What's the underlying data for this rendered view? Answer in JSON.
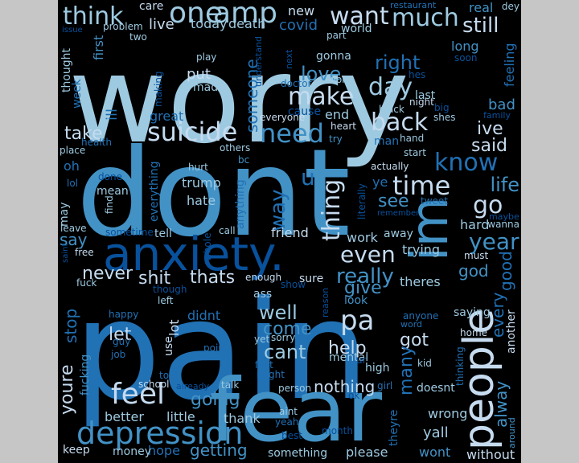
{
  "background": "#000000",
  "page_background": "#c6c6c6",
  "palette": [
    "#c6dbef",
    "#9ecae1",
    "#6baed6",
    "#4292c6",
    "#2171b5",
    "#08519c",
    "#08306b",
    "#deebf7"
  ],
  "words": [
    {
      "text": "worry",
      "color": "#9ecae1"
    },
    {
      "text": "dont",
      "color": "#4292c6"
    },
    {
      "text": "pain",
      "color": "#2171b5"
    },
    {
      "text": "fear",
      "color": "#4292c6"
    },
    {
      "text": "anxiety.",
      "color": "#08519c"
    },
    {
      "text": "people",
      "color": "#c6dbef"
    },
    {
      "text": "depression",
      "color": "#4292c6"
    },
    {
      "text": "im",
      "color": "#4292c6"
    },
    {
      "text": "one",
      "color": "#9ecae1"
    },
    {
      "text": "amp",
      "color": "#9ecae1"
    },
    {
      "text": "think",
      "color": "#9ecae1"
    },
    {
      "text": "want",
      "color": "#c6dbef"
    },
    {
      "text": "much",
      "color": "#9ecae1"
    },
    {
      "text": "still",
      "color": "#c6dbef"
    },
    {
      "text": "suicide",
      "color": "#c6dbef"
    },
    {
      "text": "need",
      "color": "#4292c6"
    },
    {
      "text": "know",
      "color": "#2171b5"
    },
    {
      "text": "time",
      "color": "#c6dbef"
    },
    {
      "text": "back",
      "color": "#c6dbef"
    },
    {
      "text": "make",
      "color": "#c6dbef"
    },
    {
      "text": "day",
      "color": "#9ecae1"
    },
    {
      "text": "right",
      "color": "#2171b5"
    },
    {
      "text": "love",
      "color": "#4292c6"
    },
    {
      "text": "feel",
      "color": "#c6dbef"
    },
    {
      "text": "pa",
      "color": "#c6dbef"
    },
    {
      "text": "go",
      "color": "#c6dbef"
    },
    {
      "text": "life",
      "color": "#4292c6"
    },
    {
      "text": "year",
      "color": "#4292c6"
    },
    {
      "text": "thing",
      "color": "#c6dbef"
    },
    {
      "text": "way",
      "color": "#2171b5"
    },
    {
      "text": "u",
      "color": "#2171b5"
    },
    {
      "text": "even",
      "color": "#c6dbef"
    },
    {
      "text": "really",
      "color": "#4292c6"
    },
    {
      "text": "see",
      "color": "#4292c6"
    },
    {
      "text": "ive",
      "color": "#c6dbef"
    },
    {
      "text": "said",
      "color": "#c6dbef"
    },
    {
      "text": "take",
      "color": "#c6dbef"
    },
    {
      "text": "say",
      "color": "#4292c6"
    },
    {
      "text": "never",
      "color": "#c6dbef"
    },
    {
      "text": "shit",
      "color": "#c6dbef"
    },
    {
      "text": "thats",
      "color": "#c6dbef"
    },
    {
      "text": "someone",
      "color": "#2171b5"
    },
    {
      "text": "give",
      "color": "#4292c6"
    },
    {
      "text": "god",
      "color": "#4292c6"
    },
    {
      "text": "good",
      "color": "#2171b5"
    },
    {
      "text": "well",
      "color": "#9ecae1"
    },
    {
      "text": "come",
      "color": "#4292c6"
    },
    {
      "text": "cant",
      "color": "#9ecae1"
    },
    {
      "text": "help",
      "color": "#c6dbef"
    },
    {
      "text": "got",
      "color": "#c6dbef"
    },
    {
      "text": "let",
      "color": "#c6dbef"
    },
    {
      "text": "stop",
      "color": "#2171b5"
    },
    {
      "text": "youre",
      "color": "#c6dbef"
    },
    {
      "text": "going",
      "color": "#4292c6"
    },
    {
      "text": "nothing",
      "color": "#c6dbef"
    },
    {
      "text": "many",
      "color": "#2171b5"
    },
    {
      "text": "every",
      "color": "#2171b5"
    },
    {
      "text": "alway",
      "color": "#4292c6"
    },
    {
      "text": "better",
      "color": "#9ecae1"
    },
    {
      "text": "little",
      "color": "#9ecae1"
    },
    {
      "text": "thank",
      "color": "#9ecae1"
    },
    {
      "text": "getting",
      "color": "#4292c6"
    },
    {
      "text": "hope",
      "color": "#2171b5"
    },
    {
      "text": "money",
      "color": "#9ecae1"
    },
    {
      "text": "keep",
      "color": "#c6dbef"
    },
    {
      "text": "something",
      "color": "#9ecae1"
    },
    {
      "text": "please",
      "color": "#9ecae1"
    },
    {
      "text": "without",
      "color": "#c6dbef"
    },
    {
      "text": "wont",
      "color": "#4292c6"
    },
    {
      "text": "yall",
      "color": "#9ecae1"
    },
    {
      "text": "wrong",
      "color": "#9ecae1"
    },
    {
      "text": "doesnt",
      "color": "#9ecae1"
    },
    {
      "text": "theyre",
      "color": "#2171b5"
    },
    {
      "text": "fucking",
      "color": "#4292c6"
    },
    {
      "text": "live",
      "color": "#c6dbef"
    },
    {
      "text": "today",
      "color": "#9ecae1"
    },
    {
      "text": "death",
      "color": "#9ecae1"
    },
    {
      "text": "covid",
      "color": "#2171b5"
    },
    {
      "text": "new",
      "color": "#c6dbef"
    },
    {
      "text": "care",
      "color": "#c6dbef"
    },
    {
      "text": "real",
      "color": "#4292c6"
    },
    {
      "text": "dey",
      "color": "#9ecae1"
    },
    {
      "text": "restaurant",
      "color": "#2171b5"
    },
    {
      "text": "world",
      "color": "#9ecae1"
    },
    {
      "text": "long",
      "color": "#4292c6"
    },
    {
      "text": "gonna",
      "color": "#9ecae1"
    },
    {
      "text": "put",
      "color": "#c6dbef"
    },
    {
      "text": "made",
      "color": "#9ecae1"
    },
    {
      "text": "ill",
      "color": "#2171b5"
    },
    {
      "text": "week",
      "color": "#2171b5"
    },
    {
      "text": "thought",
      "color": "#9ecae1"
    },
    {
      "text": "first",
      "color": "#4292c6"
    },
    {
      "text": "great",
      "color": "#2171b5"
    },
    {
      "text": "end",
      "color": "#9ecae1"
    },
    {
      "text": "cause",
      "color": "#08519c"
    },
    {
      "text": "last",
      "color": "#9ecae1"
    },
    {
      "text": "bad",
      "color": "#4292c6"
    },
    {
      "text": "feeling",
      "color": "#2171b5"
    },
    {
      "text": "man",
      "color": "#2171b5"
    },
    {
      "text": "trump",
      "color": "#9ecae1"
    },
    {
      "text": "hate",
      "color": "#9ecae1"
    },
    {
      "text": "mean",
      "color": "#9ecae1"
    },
    {
      "text": "everything",
      "color": "#2171b5"
    },
    {
      "text": "anything",
      "color": "#2171b5"
    },
    {
      "text": "tell",
      "color": "#9ecae1"
    },
    {
      "text": "friend",
      "color": "#c6dbef"
    },
    {
      "text": "work",
      "color": "#9ecae1"
    },
    {
      "text": "away",
      "color": "#9ecae1"
    },
    {
      "text": "trying",
      "color": "#9ecae1"
    },
    {
      "text": "sure",
      "color": "#c6dbef"
    },
    {
      "text": "theres",
      "color": "#9ecae1"
    },
    {
      "text": "hard",
      "color": "#9ecae1"
    },
    {
      "text": "didnt",
      "color": "#2171b5"
    },
    {
      "text": "lot",
      "color": "#c6dbef"
    },
    {
      "text": "use",
      "color": "#c6dbef"
    },
    {
      "text": "look",
      "color": "#4292c6"
    },
    {
      "text": "ass",
      "color": "#9ecae1"
    },
    {
      "text": "oh",
      "color": "#2171b5"
    },
    {
      "text": "ye",
      "color": "#2171b5"
    },
    {
      "text": "may",
      "color": "#9ecae1"
    },
    {
      "text": "another",
      "color": "#c6dbef"
    },
    {
      "text": "kid",
      "color": "#9ecae1"
    },
    {
      "text": "saying",
      "color": "#9ecae1"
    },
    {
      "text": "high",
      "color": "#9ecae1"
    },
    {
      "text": "home",
      "color": "#c6dbef"
    },
    {
      "text": "mental",
      "color": "#9ecae1"
    },
    {
      "text": "girl",
      "color": "#2171b5"
    },
    {
      "text": "talk",
      "color": "#9ecae1"
    },
    {
      "text": "person",
      "color": "#9ecae1"
    },
    {
      "text": "point",
      "color": "#2171b5"
    },
    {
      "text": "left",
      "color": "#9ecae1"
    },
    {
      "text": "happy",
      "color": "#2171b5"
    },
    {
      "text": "guy",
      "color": "#2171b5"
    },
    {
      "text": "job",
      "color": "#2171b5"
    },
    {
      "text": "told",
      "color": "#2171b5"
    },
    {
      "text": "school",
      "color": "#c6dbef"
    },
    {
      "text": "already",
      "color": "#08519c"
    },
    {
      "text": "sorry",
      "color": "#9ecae1"
    },
    {
      "text": "yet",
      "color": "#9ecae1"
    },
    {
      "text": "fact",
      "color": "#2171b5"
    },
    {
      "text": "might",
      "color": "#2171b5"
    },
    {
      "text": "aint",
      "color": "#9ecae1"
    },
    {
      "text": "yeah",
      "color": "#2171b5"
    },
    {
      "text": "best",
      "color": "#08519c"
    },
    {
      "text": "month",
      "color": "#08519c"
    },
    {
      "text": "ok",
      "color": "#08519c"
    },
    {
      "text": "around",
      "color": "#4292c6"
    },
    {
      "text": "thinking",
      "color": "#2171b5"
    },
    {
      "text": "anyone",
      "color": "#2171b5"
    },
    {
      "text": "word",
      "color": "#2171b5"
    },
    {
      "text": "heart",
      "color": "#c6dbef"
    },
    {
      "text": "try",
      "color": "#4292c6"
    },
    {
      "text": "actually",
      "color": "#c6dbef"
    },
    {
      "text": "remember",
      "color": "#08519c"
    },
    {
      "text": "tweet",
      "color": "#2171b5"
    },
    {
      "text": "start",
      "color": "#9ecae1"
    },
    {
      "text": "black",
      "color": "#9ecae1"
    },
    {
      "text": "night",
      "color": "#c6dbef"
    },
    {
      "text": "shes",
      "color": "#9ecae1"
    },
    {
      "text": "big",
      "color": "#08519c"
    },
    {
      "text": "hand",
      "color": "#9ecae1"
    },
    {
      "text": "family",
      "color": "#08519c"
    },
    {
      "text": "soon",
      "color": "#08519c"
    },
    {
      "text": "maybe",
      "color": "#08519c"
    },
    {
      "text": "wanna",
      "color": "#9ecae1"
    },
    {
      "text": "must",
      "color": "#c6dbef"
    },
    {
      "text": "hes",
      "color": "#08519c"
    },
    {
      "text": "doctor",
      "color": "#2171b5"
    },
    {
      "text": "next",
      "color": "#08519c"
    },
    {
      "text": "understand",
      "color": "#08519c"
    },
    {
      "text": "worr",
      "color": "#9ecae1"
    },
    {
      "text": "part",
      "color": "#9ecae1"
    },
    {
      "text": "issue",
      "color": "#08519c"
    },
    {
      "text": "problem",
      "color": "#9ecae1"
    },
    {
      "text": "two",
      "color": "#9ecae1"
    },
    {
      "text": "play",
      "color": "#9ecae1"
    },
    {
      "text": "making",
      "color": "#08519c"
    },
    {
      "text": "everyone",
      "color": "#c6dbef"
    },
    {
      "text": "health",
      "color": "#2171b5"
    },
    {
      "text": "place",
      "color": "#9ecae1"
    },
    {
      "text": "others",
      "color": "#9ecae1"
    },
    {
      "text": "bc",
      "color": "#4292c6"
    },
    {
      "text": "hurt",
      "color": "#9ecae1"
    },
    {
      "text": "done",
      "color": "#08519c"
    },
    {
      "text": "find",
      "color": "#9ecae1"
    },
    {
      "text": "lol",
      "color": "#2171b5"
    },
    {
      "text": "leave",
      "color": "#9ecae1"
    },
    {
      "text": "sometime",
      "color": "#08519c"
    },
    {
      "text": "call",
      "color": "#9ecae1"
    },
    {
      "text": "whole",
      "color": "#08519c"
    },
    {
      "text": "free",
      "color": "#c6dbef"
    },
    {
      "text": "fuck",
      "color": "#9ecae1"
    },
    {
      "text": "though",
      "color": "#08519c"
    },
    {
      "text": "enough",
      "color": "#c6dbef"
    },
    {
      "text": "show",
      "color": "#08519c"
    },
    {
      "text": "literally",
      "color": "#08519c"
    },
    {
      "text": "reason",
      "color": "#08519c"
    },
    {
      "text": "ur",
      "color": "#08519c"
    },
    {
      "text": "saint",
      "color": "#08519c"
    }
  ]
}
